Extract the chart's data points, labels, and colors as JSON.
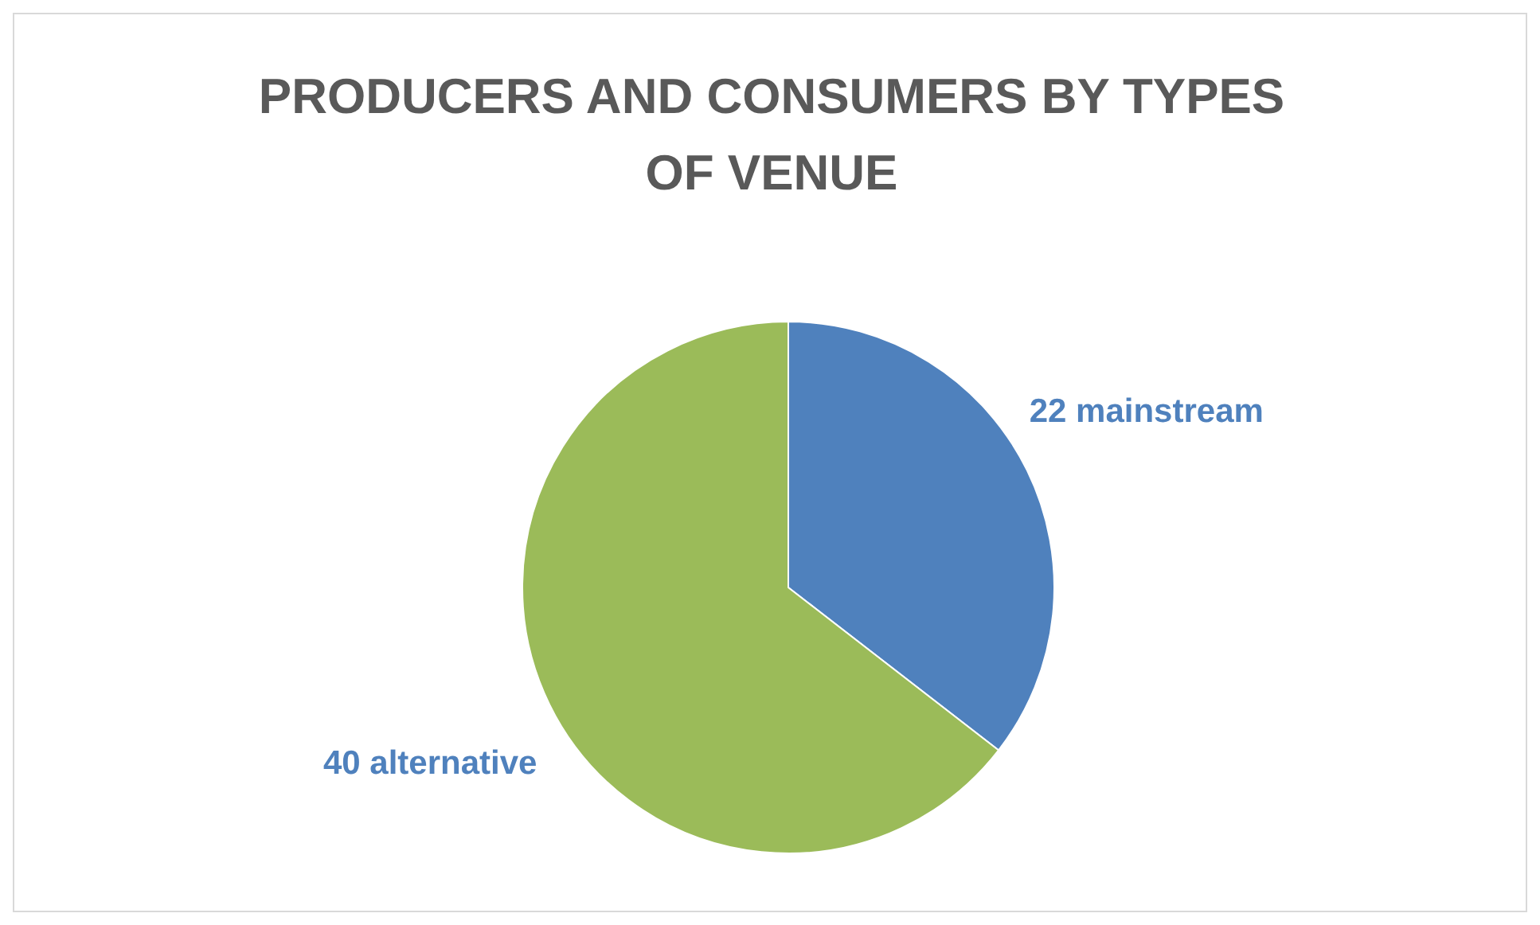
{
  "chart_data": {
    "type": "pie",
    "title": "PRODUCERS AND CONSUMERS BY TYPES OF VENUE",
    "categories": [
      "22 mainstream",
      "40 alternative"
    ],
    "values": [
      22,
      40
    ],
    "colors": [
      "#4f81bd",
      "#9bbb59"
    ]
  }
}
